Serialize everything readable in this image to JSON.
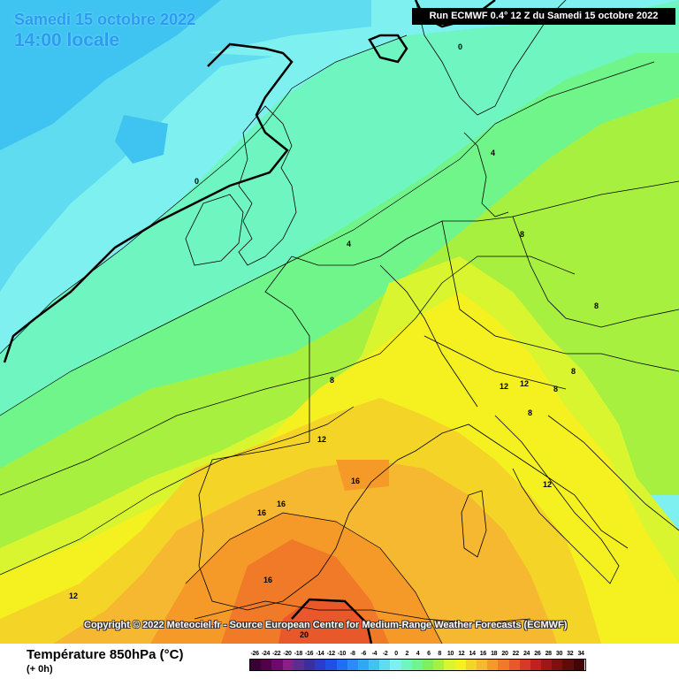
{
  "header": {
    "date_line": "Samedi 15 octobre 2022",
    "time_line": "14:00 locale",
    "run_info": "Run ECMWF 0.4° 12 Z du Samedi 15 octobre 2022"
  },
  "copyright": "Copyright © 2022 Meteociel.fr - Source European Centre for Medium-Range Weather Forecasts (ECMWF)",
  "footer": {
    "title": "Température 850hPa (°C)",
    "subtitle": "(+ 0h)"
  },
  "isotherm_labels": [
    "0",
    "0",
    "4",
    "4",
    "8",
    "8",
    "8",
    "8",
    "8",
    "8",
    "12",
    "12",
    "12",
    "12",
    "12",
    "16",
    "16",
    "16",
    "16",
    "20"
  ],
  "legend": {
    "labels": [
      "-26",
      "-24",
      "-22",
      "-20",
      "-18",
      "-16",
      "-14",
      "-12",
      "-10",
      "-8",
      "-6",
      "-4",
      "-2",
      "0",
      "2",
      "4",
      "6",
      "8",
      "10",
      "12",
      "14",
      "16",
      "18",
      "20",
      "22",
      "24",
      "26",
      "28",
      "30",
      "32",
      "34"
    ],
    "colors": [
      "#3a0033",
      "#52004a",
      "#6e0a6e",
      "#8a1f8a",
      "#5c2d91",
      "#3b2fa0",
      "#2b3bcc",
      "#1e4fe6",
      "#1f6ff5",
      "#2a8df7",
      "#2fa8f5",
      "#3fc4f2",
      "#5fdcf0",
      "#7ff0f0",
      "#6ff5c0",
      "#70f58a",
      "#7ef060",
      "#a8f040",
      "#d8f530",
      "#f5f020",
      "#f5d428",
      "#f5b830",
      "#f59a28",
      "#f07a28",
      "#e8582a",
      "#d83a2a",
      "#c02020",
      "#a01515",
      "#801010",
      "#600a0a",
      "#400505"
    ]
  }
}
